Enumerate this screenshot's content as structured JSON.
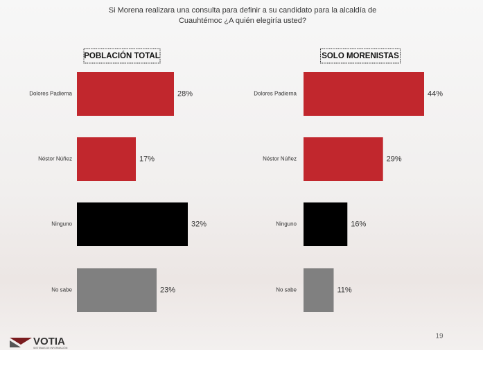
{
  "chart_data": [
    {
      "type": "bar",
      "orientation": "horizontal",
      "title": "POBLACIÓN TOTAL",
      "categories": [
        "Dolores Padierna",
        "Néstor Núñez",
        "Ninguno",
        "No sabe"
      ],
      "values": [
        28,
        17,
        32,
        23
      ],
      "value_labels": [
        "28%",
        "17%",
        "32%",
        "23%"
      ],
      "colors": [
        "#c1272d",
        "#c1272d",
        "#000000",
        "#808080"
      ]
    },
    {
      "type": "bar",
      "orientation": "horizontal",
      "title": "SOLO MORENISTAS",
      "categories": [
        "Dolores Padierna",
        "Néstor Núñez",
        "Ninguno",
        "No sabe"
      ],
      "values": [
        44,
        29,
        16,
        11
      ],
      "value_labels": [
        "44%",
        "29%",
        "16%",
        "11%"
      ],
      "colors": [
        "#c1272d",
        "#c1272d",
        "#000000",
        "#808080"
      ]
    }
  ],
  "header": {
    "title": "Si Morena realizara una consulta para definir a su candidato para la alcaldía de Cuauhtémoc ¿A quién elegiría usted?"
  },
  "footer": {
    "page": "19",
    "logo": "VOTIA",
    "logo_sub": "SISTEMAS DE INFORMACIÓN"
  }
}
